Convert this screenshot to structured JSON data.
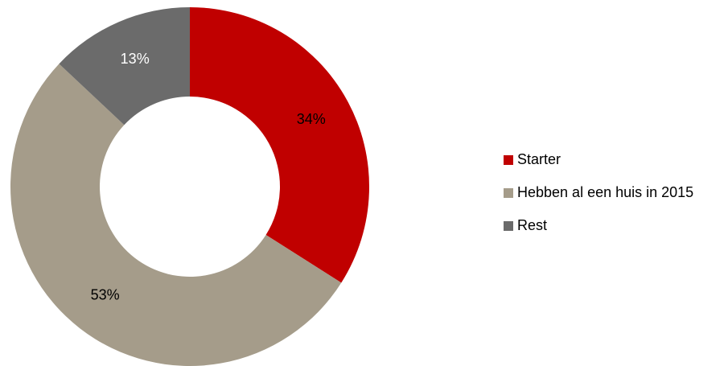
{
  "chart_data": {
    "type": "pie",
    "variant": "donut",
    "title": "",
    "categories": [
      "Starter",
      "Hebben al een huis in 2015",
      "Rest"
    ],
    "values": [
      34,
      53,
      13
    ],
    "labels": [
      "34%",
      "53%",
      "13%"
    ],
    "colors": [
      "#c00000",
      "#a59c8a",
      "#6b6b6b"
    ],
    "label_colors": [
      "#000000",
      "#000000",
      "#ffffff"
    ],
    "start_angle_deg": 0,
    "direction": "clockwise",
    "legend_position": "right"
  },
  "legend": {
    "items": [
      {
        "label": "Starter",
        "color": "#c00000"
      },
      {
        "label": "Hebben al een huis in 2015",
        "color": "#a59c8a"
      },
      {
        "label": "Rest",
        "color": "#6b6b6b"
      }
    ]
  }
}
